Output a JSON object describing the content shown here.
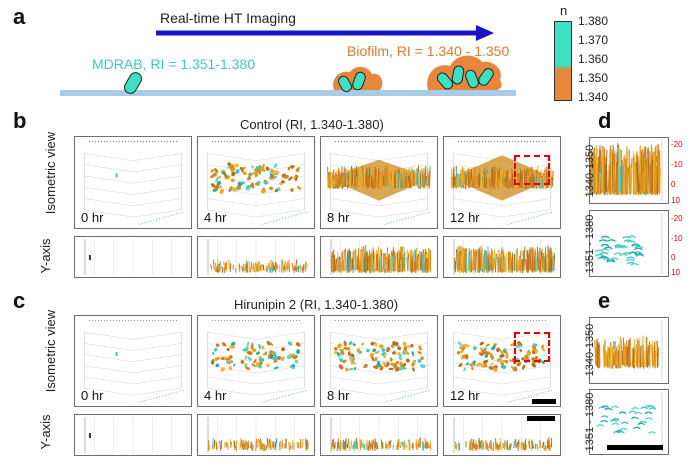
{
  "panels": {
    "a": "a",
    "b": "b",
    "c": "c",
    "d": "d",
    "e": "e"
  },
  "schematic": {
    "arrow_label": "Real-time HT Imaging",
    "mdrab_label": "MDRAB, RI = 1.351-1.380",
    "biofilm_label": "Biofilm, RI = 1.340 - 1.350",
    "colors": {
      "arrow": "#1a12c8",
      "surface": "#a9cce6",
      "bacteria": "#3de0c0",
      "biofilm": "#e8863c",
      "mdrab_text": "#3ec9c0",
      "biofilm_text": "#e07a2c"
    }
  },
  "colorbar": {
    "title": "n",
    "ticks": [
      "1.380",
      "1.370",
      "1.360",
      "1.350",
      "1.340"
    ],
    "colors": {
      "top": "#3de0c0",
      "bottom": "#e8863c"
    }
  },
  "section_b": {
    "title": "Control (RI, 1.340-1.380)",
    "row_labels": {
      "iso": "Isometric view",
      "yaxis": "Y-axis"
    },
    "time_labels": [
      "0 hr",
      "4 hr",
      "8 hr",
      "12 hr"
    ],
    "density": [
      0.02,
      0.45,
      1.0,
      1.0
    ]
  },
  "section_c": {
    "title": "Hirunipin 2 (RI, 1.340-1.380)",
    "row_labels": {
      "iso": "Isometric view",
      "yaxis": "Y-axis"
    },
    "time_labels": [
      "0 hr",
      "4 hr",
      "8 hr",
      "12 hr"
    ],
    "density": [
      0.02,
      0.35,
      0.45,
      0.45
    ]
  },
  "section_d": {
    "labels": [
      "1340-1350",
      "1351 - 1380"
    ],
    "axis_ticks": [
      "-20",
      "-10",
      "0",
      "10"
    ],
    "axis_color": "#e00000"
  },
  "section_e": {
    "labels": [
      "1340-1350",
      "1351 - 1380"
    ]
  }
}
